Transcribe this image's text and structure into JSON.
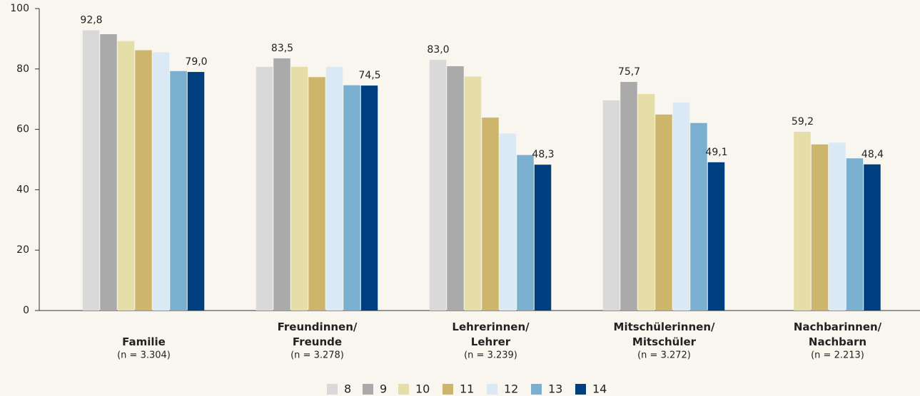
{
  "chart_data": {
    "type": "bar",
    "categories": [
      [
        "Familie"
      ],
      [
        "Freundinnen/",
        "Freunde"
      ],
      [
        "Lehrerinnen/",
        "Lehrer"
      ],
      [
        "Mitschülerinnen/",
        "Mitschüler"
      ],
      [
        "Nachbarinnen/",
        "Nachbarn"
      ]
    ],
    "category_notes": [
      "(n = 3.304)",
      "(n = 3.278)",
      "(n = 3.239)",
      "(n = 3.272)",
      "(n = 2.213)"
    ],
    "series": [
      {
        "name": "8",
        "color": "#d9d9d9",
        "values": [
          92.8,
          80.7,
          83.0,
          69.6,
          null
        ],
        "value_labels": [
          "92,8",
          null,
          "83,0",
          null,
          null
        ]
      },
      {
        "name": "9",
        "color": "#aaaaab",
        "values": [
          91.5,
          83.5,
          80.9,
          75.7,
          null
        ],
        "value_labels": [
          null,
          "83,5",
          null,
          "75,7",
          null
        ]
      },
      {
        "name": "10",
        "color": "#e6dea8",
        "values": [
          89.2,
          80.7,
          77.5,
          71.7,
          59.2
        ],
        "value_labels": [
          null,
          null,
          null,
          null,
          "59,2"
        ]
      },
      {
        "name": "11",
        "color": "#cdb56c",
        "values": [
          86.2,
          77.3,
          63.9,
          64.9,
          55.0
        ]
      },
      {
        "name": "12",
        "color": "#dbe9f5",
        "values": [
          85.5,
          80.7,
          58.6,
          68.9,
          55.6
        ]
      },
      {
        "name": "13",
        "color": "#7aafcf",
        "values": [
          79.3,
          74.6,
          51.5,
          62.1,
          50.4
        ]
      },
      {
        "name": "14",
        "color": "#003f7f",
        "values": [
          79.0,
          74.5,
          48.3,
          49.1,
          48.4
        ],
        "value_labels": [
          "79,0",
          "74,5",
          "48,3",
          "49,1",
          "48,4"
        ]
      }
    ],
    "ylim": [
      0,
      100
    ],
    "yticks": [
      0,
      20,
      40,
      60,
      80,
      100
    ],
    "grid": false,
    "legend": "bottom"
  }
}
